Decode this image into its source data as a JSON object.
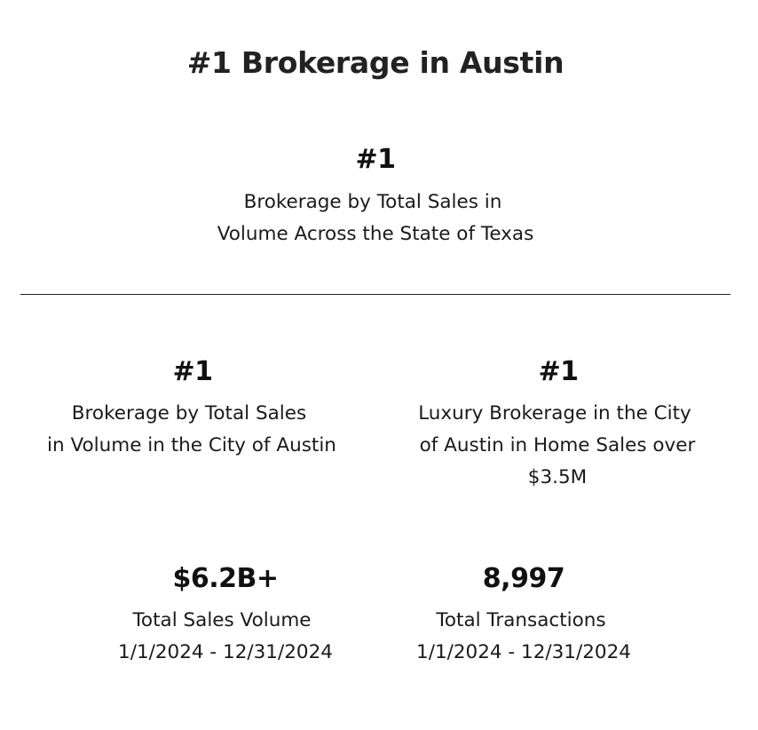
{
  "heading": "#1 Brokerage in Austin",
  "featured_stat": {
    "value": "#1",
    "lines": [
      "Brokerage by Total Sales in",
      "Volume Across the State of Texas"
    ]
  },
  "stats_row_1": [
    {
      "value": "#1",
      "lines": [
        "Brokerage by Total Sales",
        "in Volume in the City of Austin"
      ]
    },
    {
      "value": "#1",
      "lines": [
        "Luxury Brokerage in the City",
        "of Austin in Home Sales over",
        "$3.5M"
      ]
    }
  ],
  "stats_row_2": [
    {
      "value": "$6.2B+",
      "lines": [
        "Total Sales Volume",
        "1/1/2024 - 12/31/2024"
      ]
    },
    {
      "value": "8,997",
      "lines": [
        "Total Transactions",
        "1/1/2024 - 12/31/2024"
      ]
    }
  ]
}
